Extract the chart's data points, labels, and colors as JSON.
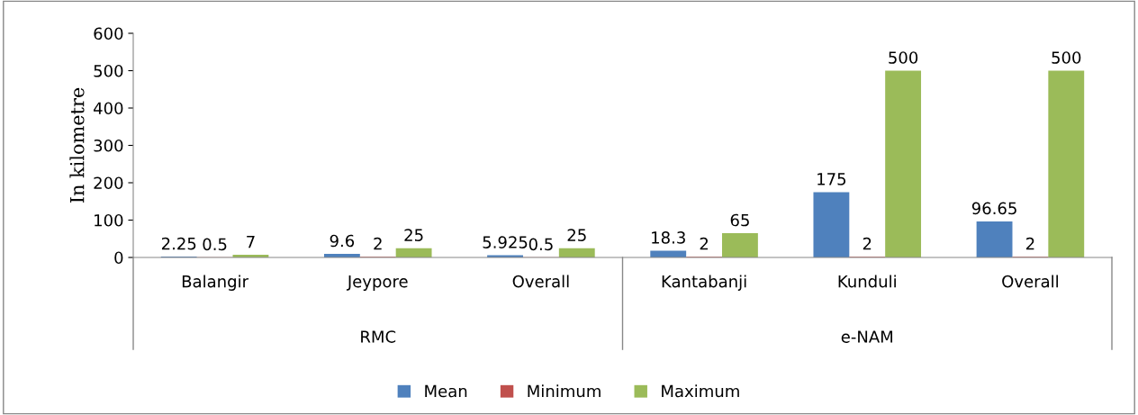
{
  "chart_data": {
    "type": "bar",
    "ylabel": "In kilometre",
    "categories": [
      "Balangir",
      "Jeypore",
      "Overall",
      "Kantabanji",
      "Kunduli",
      "Overall"
    ],
    "series": [
      {
        "name": "Mean",
        "color": "#4f81bd",
        "values": [
          2.25,
          9.6,
          5.925,
          18.3,
          175,
          96.65
        ]
      },
      {
        "name": "Minimum",
        "color": "#c0504d",
        "values": [
          0.5,
          2,
          0.5,
          2,
          2,
          2
        ]
      },
      {
        "name": "Maximum",
        "color": "#9bbb59",
        "values": [
          7,
          25,
          25,
          65,
          500,
          500
        ]
      }
    ],
    "annotations": [
      "RMC",
      "e-NAM"
    ],
    "ylim": [
      0,
      600
    ],
    "yticks": [
      0,
      100,
      200,
      300,
      400,
      500,
      600
    ],
    "grid": false,
    "legend": "bottom",
    "data_labels": true
  }
}
